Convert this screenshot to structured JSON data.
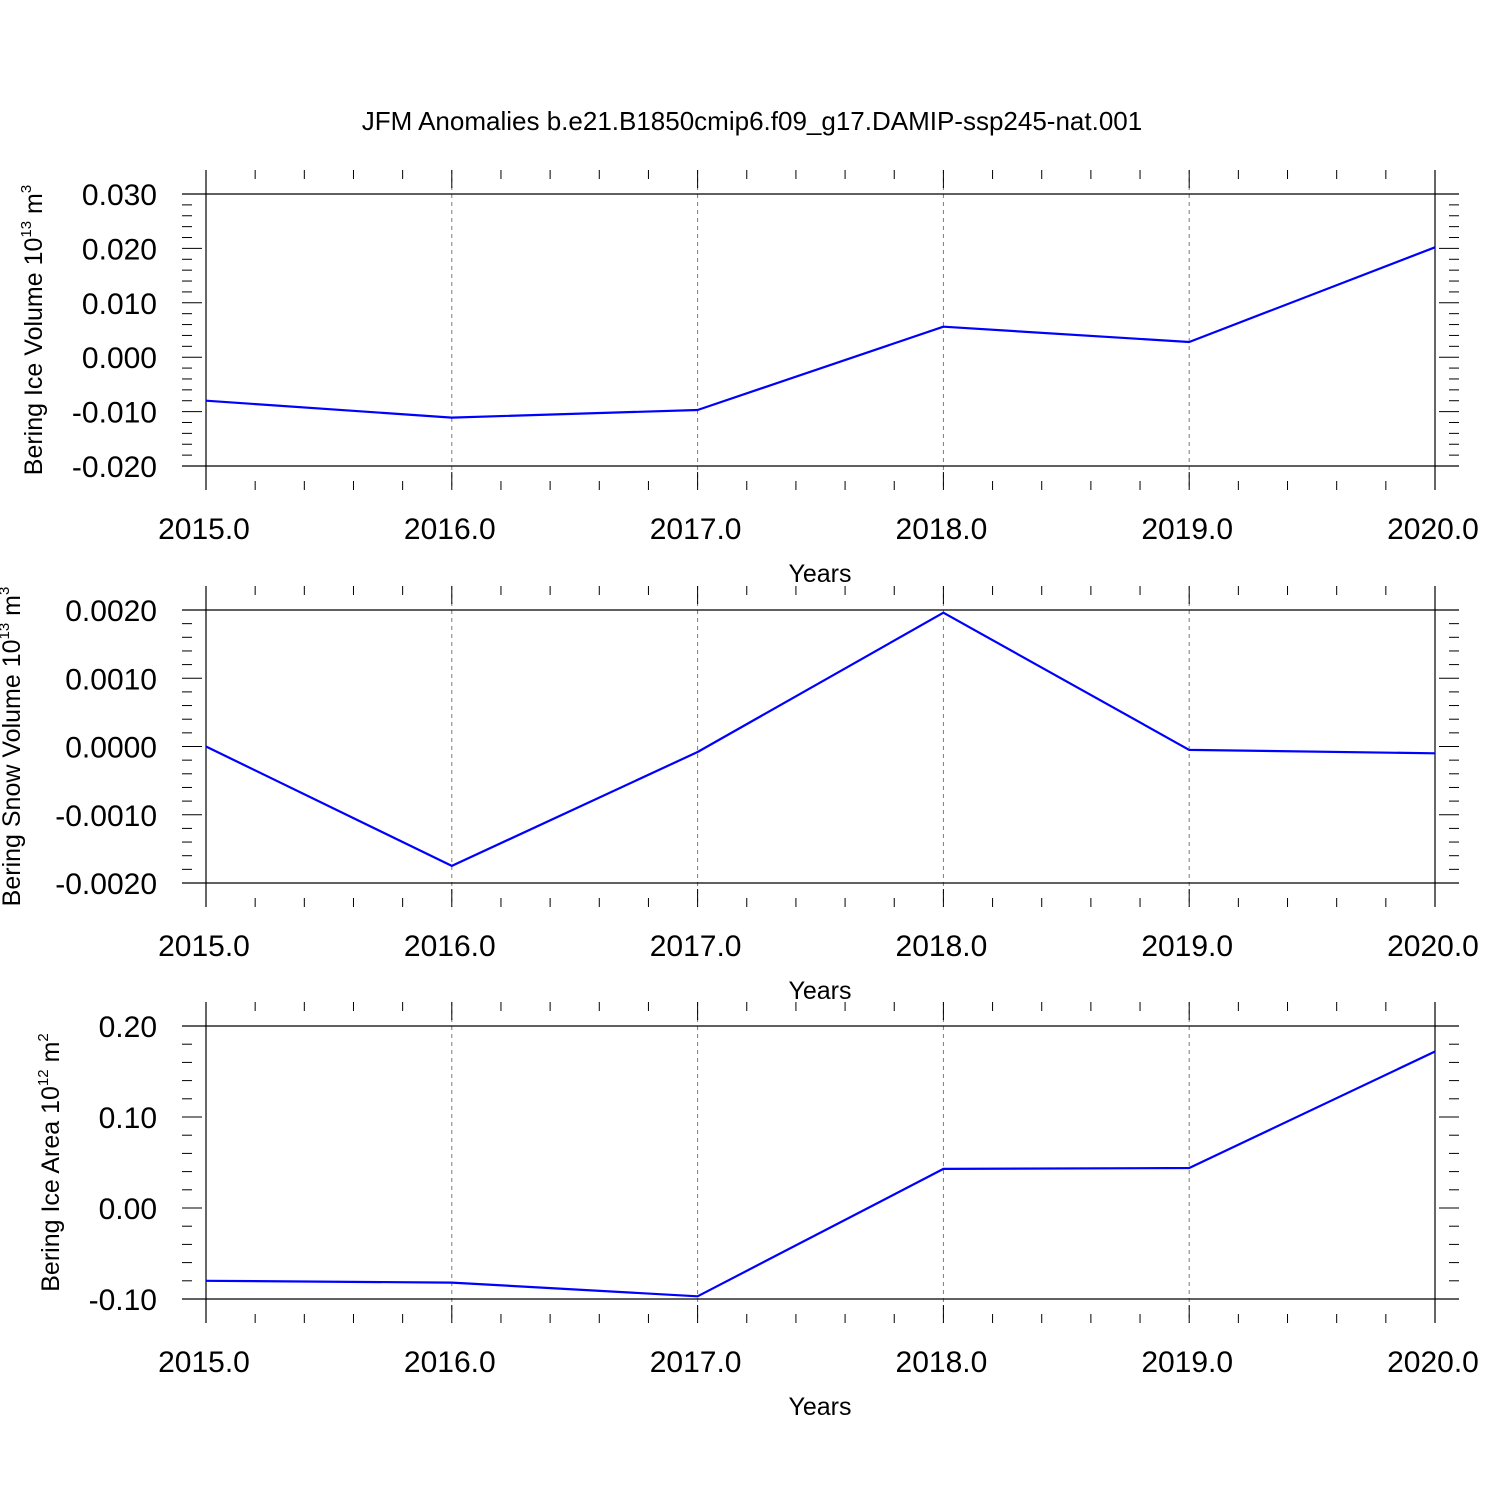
{
  "title": "JFM Anomalies b.e21.B1850cmip6.f09_g17.DAMIP-ssp245-nat.001",
  "line_color": "#0000ff",
  "chart_data": [
    {
      "type": "line",
      "xlabel": "Years",
      "ylabel": {
        "text": "Bering Ice Volume 10",
        "exp": "13",
        "unit": " m",
        "unit_exp": "3"
      },
      "x": [
        2015,
        2016,
        2017,
        2018,
        2019,
        2020
      ],
      "xticks": [
        2015,
        2016,
        2017,
        2018,
        2019,
        2020
      ],
      "xtick_labels": [
        "2015.0",
        "2016.0",
        "2017.0",
        "2018.0",
        "2019.0",
        "2020.0"
      ],
      "xlim": [
        2015,
        2020
      ],
      "ylim": [
        -0.02,
        0.03
      ],
      "yticks": [
        -0.02,
        -0.01,
        0.0,
        0.01,
        0.02,
        0.03
      ],
      "ytick_labels": [
        "-0.020",
        "-0.010",
        "0.000",
        "0.010",
        "0.020",
        "0.030"
      ],
      "grid": "x-dashed",
      "series": [
        {
          "values": [
            -0.008,
            -0.0111,
            -0.0097,
            0.0056,
            0.0028,
            0.0202
          ]
        }
      ]
    },
    {
      "type": "line",
      "xlabel": "Years",
      "ylabel": {
        "text": "Bering Snow Volume 10",
        "exp": "13",
        "unit": " m",
        "unit_exp": "3"
      },
      "x": [
        2015,
        2016,
        2017,
        2018,
        2019,
        2020
      ],
      "xticks": [
        2015,
        2016,
        2017,
        2018,
        2019,
        2020
      ],
      "xtick_labels": [
        "2015.0",
        "2016.0",
        "2017.0",
        "2018.0",
        "2019.0",
        "2020.0"
      ],
      "xlim": [
        2015,
        2020
      ],
      "ylim": [
        -0.002,
        0.002
      ],
      "yticks": [
        -0.002,
        -0.001,
        0.0,
        0.001,
        0.002
      ],
      "ytick_labels": [
        "-0.0020",
        "-0.0010",
        "0.0000",
        "0.0010",
        "0.0020"
      ],
      "grid": "x-dashed",
      "series": [
        {
          "values": [
            0.0,
            -0.00175,
            -8e-05,
            0.00196,
            -5e-05,
            -0.0001
          ]
        }
      ]
    },
    {
      "type": "line",
      "xlabel": "Years",
      "ylabel": {
        "text": "Bering Ice Area 10",
        "exp": "12",
        "unit": " m",
        "unit_exp": "2"
      },
      "x": [
        2015,
        2016,
        2017,
        2018,
        2019,
        2020
      ],
      "xticks": [
        2015,
        2016,
        2017,
        2018,
        2019,
        2020
      ],
      "xtick_labels": [
        "2015.0",
        "2016.0",
        "2017.0",
        "2018.0",
        "2019.0",
        "2020.0"
      ],
      "xlim": [
        2015,
        2020
      ],
      "ylim": [
        -0.1,
        0.2
      ],
      "yticks": [
        -0.1,
        0.0,
        0.1,
        0.2
      ],
      "ytick_labels": [
        "-0.10",
        "0.00",
        "0.10",
        "0.20"
      ],
      "grid": "x-dashed",
      "series": [
        {
          "values": [
            -0.08,
            -0.082,
            -0.097,
            0.043,
            0.044,
            0.172
          ]
        }
      ]
    }
  ]
}
